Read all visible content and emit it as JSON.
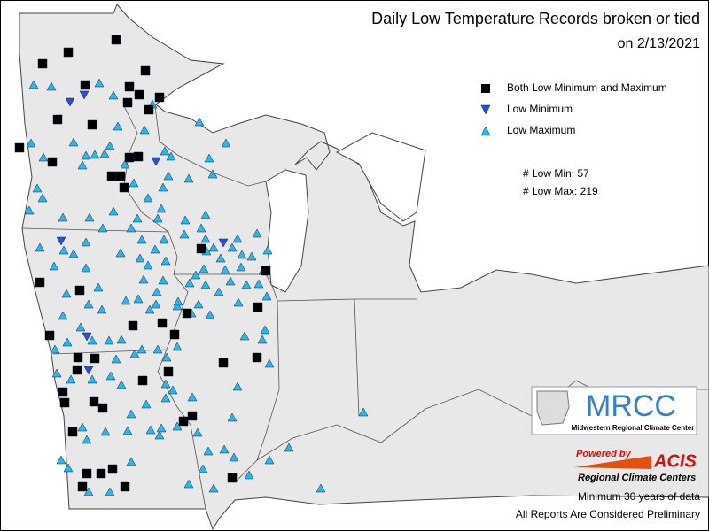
{
  "title": "Daily Low Temperature Records broken or tied",
  "subtitle": "on 2/13/2021",
  "legend": [
    "Both Low Minimum and Maximum",
    "Low Minimum",
    "Low Maximum"
  ],
  "counts": [
    "# Low Min: 57",
    "# Low Max: 219"
  ],
  "logo": {
    "name": "MRCC",
    "full_name": "Midwestern Regional Climate Center"
  },
  "acis": {
    "powered": "Powered by",
    "name": "ACIS",
    "sub": "Regional Climate Centers"
  },
  "notes": [
    "Minimum 30 years of data",
    "All Reports Are Considered Preliminary"
  ]
}
